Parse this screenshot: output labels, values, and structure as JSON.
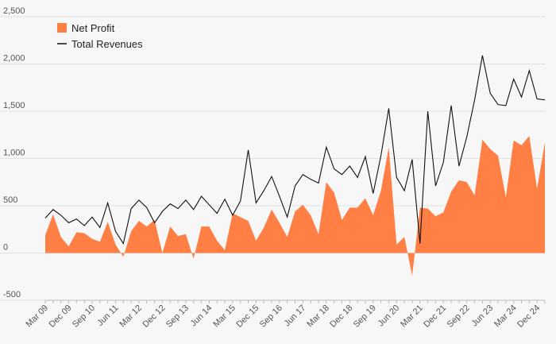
{
  "chart_data": {
    "type": "area",
    "title": "",
    "xlabel": "",
    "ylabel": "",
    "ylim": [
      -500,
      2500
    ],
    "yticks": [
      -500,
      0,
      500,
      1000,
      1500,
      2000,
      2500
    ],
    "ytick_labels": [
      "-500",
      "0",
      "500",
      "1,000",
      "1,500",
      "2,000",
      "2,500"
    ],
    "xtick_labels": [
      "Mar 09",
      "Dec 09",
      "Sep 10",
      "Jun 11",
      "Mar 12",
      "Dec 12",
      "Sep 13",
      "Jun 14",
      "Mar 15",
      "Dec 15",
      "Sep 16",
      "Jun 17",
      "Mar 18",
      "Dec 18",
      "Sep 19",
      "Jun 20",
      "Mar 21",
      "Dec 21",
      "Sep 22",
      "Jun 23",
      "Mar 24",
      "Dec 24"
    ],
    "xtick_every": 3,
    "grid": "horizontal",
    "legend_position": "top-left",
    "series": [
      {
        "name": "Net Profit",
        "kind": "area",
        "color": "#ff7f45",
        "values": [
          190,
          410,
          170,
          70,
          220,
          210,
          150,
          120,
          330,
          90,
          -40,
          230,
          340,
          280,
          350,
          0,
          280,
          180,
          200,
          -60,
          280,
          280,
          130,
          30,
          420,
          380,
          340,
          130,
          270,
          460,
          320,
          170,
          440,
          510,
          400,
          200,
          750,
          640,
          350,
          480,
          480,
          580,
          400,
          660,
          1120,
          90,
          170,
          -240,
          480,
          470,
          390,
          430,
          650,
          770,
          750,
          610,
          1200,
          1100,
          1030,
          590,
          1190,
          1140,
          1240,
          680,
          1170
        ]
      },
      {
        "name": "Total Revenues",
        "kind": "line",
        "color": "#111111",
        "values": [
          370,
          460,
          400,
          320,
          360,
          290,
          380,
          270,
          530,
          230,
          100,
          470,
          560,
          480,
          320,
          440,
          520,
          470,
          560,
          460,
          600,
          510,
          420,
          570,
          400,
          550,
          1090,
          530,
          660,
          810,
          600,
          380,
          710,
          830,
          780,
          740,
          1120,
          890,
          830,
          920,
          800,
          1020,
          630,
          1030,
          1530,
          800,
          660,
          990,
          100,
          1500,
          710,
          960,
          1560,
          920,
          1230,
          1620,
          2090,
          1690,
          1570,
          1560,
          1840,
          1650,
          1930,
          1630,
          1620
        ]
      }
    ]
  }
}
